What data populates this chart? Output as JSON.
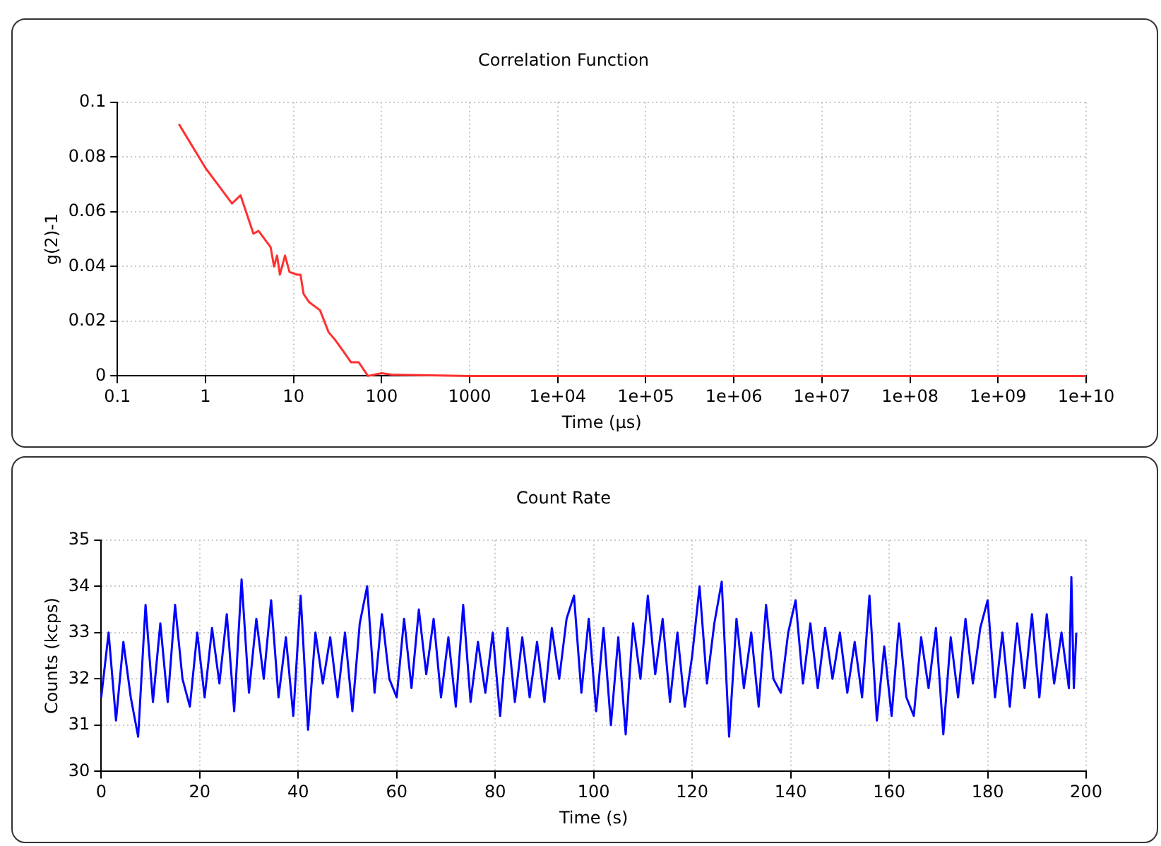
{
  "chart_data": [
    {
      "type": "line",
      "title": "Correlation Function",
      "xlabel": "Time (µs)",
      "ylabel": "g(2)-1",
      "log": "x",
      "grid": true,
      "legend": false,
      "marker": "none",
      "line_style": "solid",
      "xlim": [
        0.1,
        10000000000
      ],
      "xticks": [
        0.1,
        1,
        10,
        100,
        1000,
        {
          "value": 10000,
          "label": "1e+04"
        },
        {
          "value": 100000,
          "label": "1e+05"
        },
        {
          "value": 1000000,
          "label": "1e+06"
        },
        {
          "value": 10000000,
          "label": "1e+07"
        },
        {
          "value": 100000000,
          "label": "1e+08"
        },
        {
          "value": 1000000000,
          "label": "1e+09"
        },
        {
          "value": 10000000000,
          "label": "1e+10"
        }
      ],
      "ylim": [
        0,
        0.1
      ],
      "yticks": [
        0,
        0.02,
        0.04,
        0.06,
        0.08,
        0.1
      ],
      "x": [
        0.5,
        1,
        2,
        2.5,
        3.5,
        4,
        5.5,
        6,
        6.5,
        7,
        8,
        9,
        11,
        12,
        13,
        15,
        20,
        25,
        30,
        35,
        45,
        55,
        70,
        100,
        130,
        1000,
        10000,
        100000,
        1000000,
        10000000,
        100000000,
        1000000000,
        10000000000
      ],
      "series": [
        {
          "color": "#ff3030",
          "values": [
            0.092,
            0.076,
            0.063,
            0.066,
            0.052,
            0.053,
            0.047,
            0.04,
            0.044,
            0.037,
            0.044,
            0.038,
            0.037,
            0.037,
            0.03,
            0.027,
            0.024,
            0.016,
            0.013,
            0.01,
            0.005,
            0.005,
            0,
            0.001,
            0.0005,
            0,
            0,
            0,
            0,
            0,
            0,
            0,
            0
          ]
        }
      ]
    },
    {
      "type": "line",
      "title": "Count Rate",
      "xlabel": "Time (s)",
      "ylabel": "Counts (kcps)",
      "grid": true,
      "legend": false,
      "marker": "none",
      "line_style": "solid",
      "xlim": [
        0,
        200
      ],
      "xticks": [
        0,
        20,
        40,
        60,
        80,
        100,
        120,
        140,
        160,
        180,
        200
      ],
      "ylim": [
        30,
        35
      ],
      "yticks": [
        30,
        31,
        32,
        33,
        34,
        35
      ],
      "x": [
        0,
        1.5,
        3,
        4.5,
        6,
        7.5,
        9,
        10.5,
        12,
        13.5,
        15,
        16.5,
        18,
        19.5,
        21,
        22.5,
        24,
        25.5,
        27,
        28.5,
        30,
        31.5,
        33,
        34.5,
        36,
        37.5,
        39,
        40.5,
        42,
        43.5,
        45,
        46.5,
        48,
        49.5,
        51,
        52.5,
        54,
        55.5,
        57,
        58.5,
        60,
        61.5,
        63,
        64.5,
        66,
        67.5,
        69,
        70.5,
        72,
        73.5,
        75,
        76.5,
        78,
        79.5,
        81,
        82.5,
        84,
        85.5,
        87,
        88.5,
        90,
        91.5,
        93,
        94.5,
        96,
        97.5,
        99,
        100.5,
        102,
        103.5,
        105,
        106.5,
        108,
        109.5,
        111,
        112.5,
        114,
        115.5,
        117,
        118.5,
        120,
        121.5,
        123,
        124.5,
        126,
        127.5,
        129,
        130.5,
        132,
        133.5,
        135,
        136.5,
        138,
        139.5,
        141,
        142.5,
        144,
        145.5,
        147,
        148.5,
        150,
        151.5,
        153,
        154.5,
        156,
        157.5,
        159,
        160.5,
        162,
        163.5,
        165,
        166.5,
        168,
        169.5,
        171,
        172.5,
        174,
        175.5,
        177,
        178.5,
        180,
        181.5,
        183,
        184.5,
        186,
        187.5,
        189,
        190.5,
        192,
        193.5,
        195,
        196.5,
        197,
        197.5,
        198
      ],
      "series": [
        {
          "color": "#0000ff",
          "values": [
            31.6,
            33.0,
            31.1,
            32.8,
            31.6,
            30.75,
            33.6,
            31.5,
            33.2,
            31.5,
            33.6,
            32.0,
            31.4,
            33.0,
            31.6,
            33.1,
            31.9,
            33.4,
            31.3,
            34.15,
            31.7,
            33.3,
            32.0,
            33.7,
            31.6,
            32.9,
            31.2,
            33.8,
            30.9,
            33.0,
            31.9,
            32.9,
            31.6,
            33.0,
            31.3,
            33.2,
            34.0,
            31.7,
            33.4,
            32.0,
            31.6,
            33.3,
            31.8,
            33.5,
            32.1,
            33.3,
            31.6,
            32.9,
            31.4,
            33.6,
            31.5,
            32.8,
            31.7,
            33.0,
            31.2,
            33.1,
            31.5,
            32.9,
            31.6,
            32.8,
            31.5,
            33.1,
            32.0,
            33.3,
            33.8,
            31.7,
            33.3,
            31.3,
            33.1,
            31.0,
            32.9,
            30.8,
            33.2,
            32.0,
            33.8,
            32.1,
            33.3,
            31.5,
            33.0,
            31.4,
            32.5,
            34.0,
            31.9,
            33.2,
            34.1,
            30.75,
            33.3,
            31.8,
            33.0,
            31.4,
            33.6,
            32.0,
            31.7,
            33.0,
            33.7,
            31.9,
            33.2,
            31.8,
            33.1,
            32.0,
            33.0,
            31.7,
            32.8,
            31.6,
            33.8,
            31.1,
            32.7,
            31.2,
            33.2,
            31.6,
            31.2,
            32.9,
            31.8,
            33.1,
            30.8,
            32.9,
            31.6,
            33.3,
            31.9,
            33.1,
            33.7,
            31.6,
            33.0,
            31.4,
            33.2,
            31.8,
            33.4,
            31.6,
            33.4,
            31.9,
            33.0,
            31.8,
            34.2,
            31.8,
            33.0
          ]
        }
      ]
    }
  ]
}
